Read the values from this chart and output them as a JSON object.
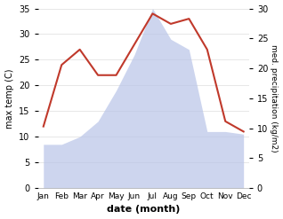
{
  "months": [
    "Jan",
    "Feb",
    "Mar",
    "Apr",
    "May",
    "Jun",
    "Jul",
    "Aug",
    "Sep",
    "Oct",
    "Nov",
    "Dec"
  ],
  "temperature": [
    12,
    24,
    27,
    22,
    22,
    28,
    34,
    32,
    33,
    27,
    13,
    11
  ],
  "precipitation": [
    8.5,
    8.5,
    10,
    13,
    19,
    26,
    35,
    29,
    27,
    11,
    11,
    10.5
  ],
  "temp_color": "#c0392b",
  "precip_color": "#b8c4e8",
  "temp_ylim": [
    0,
    35
  ],
  "precip_ylim": [
    0,
    30
  ],
  "temp_yticks": [
    0,
    5,
    10,
    15,
    20,
    25,
    30,
    35
  ],
  "precip_yticks": [
    0,
    5,
    10,
    15,
    20,
    25,
    30
  ],
  "ylabel_left": "max temp (C)",
  "ylabel_right": "med. precipitation (kg/m2)",
  "xlabel": "date (month)",
  "bg_color": "#ffffff"
}
